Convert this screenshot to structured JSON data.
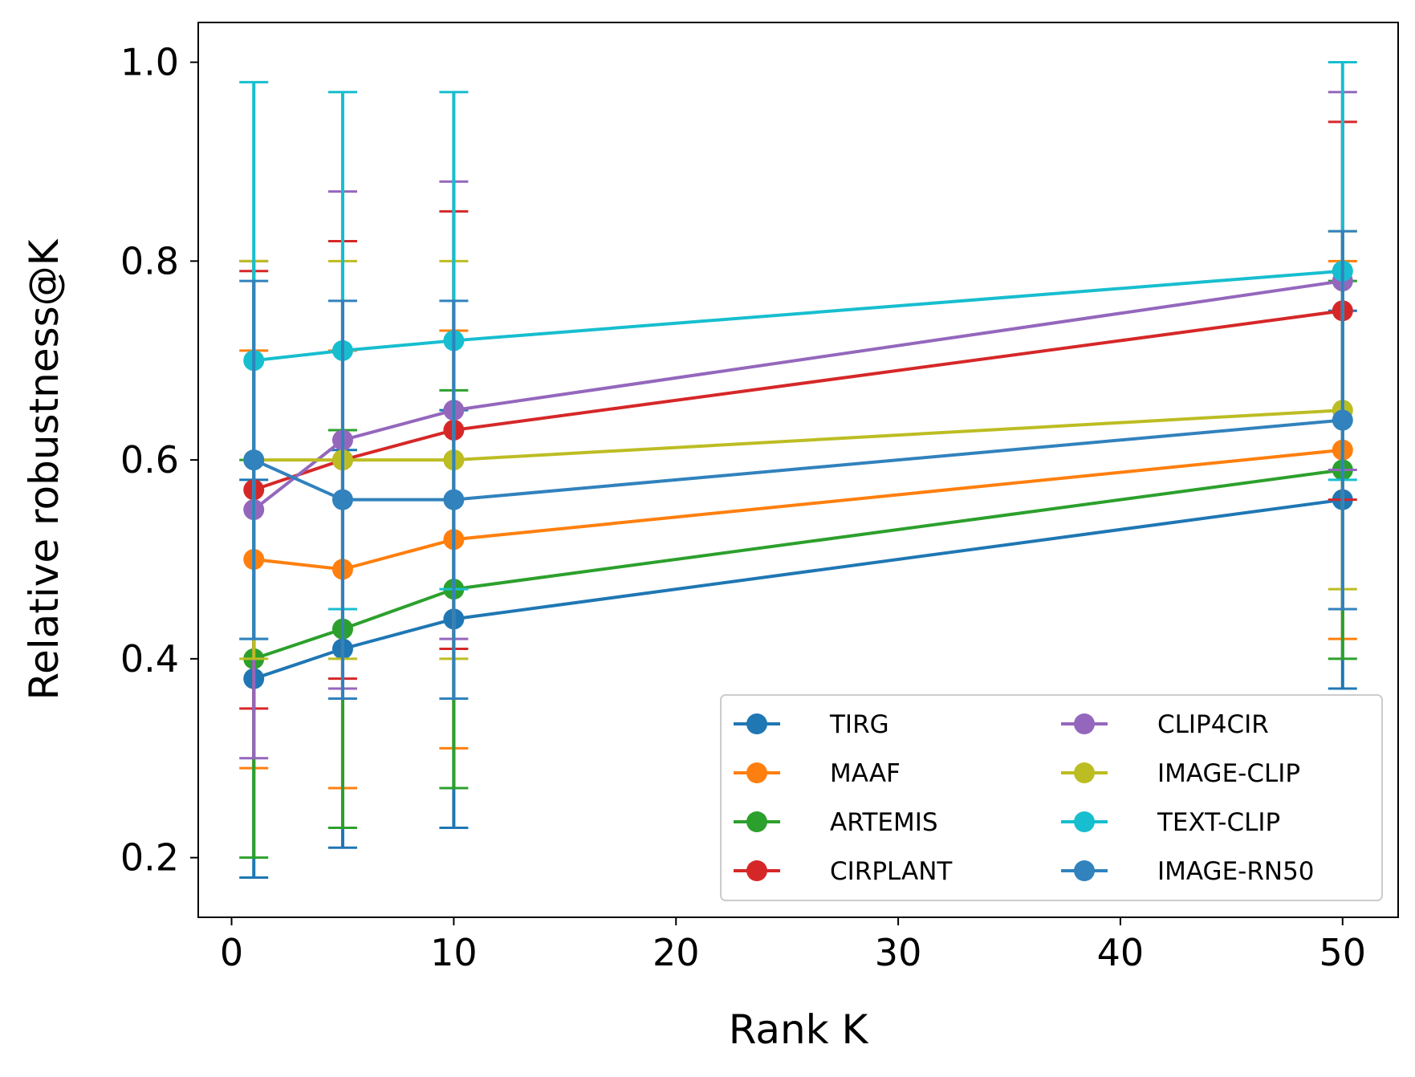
{
  "chart_data": {
    "type": "line",
    "title": "",
    "xlabel": "Rank K",
    "ylabel": "Relative robustness@K",
    "xlim": [
      -1.5,
      52.5
    ],
    "ylim": [
      0.14,
      1.04
    ],
    "xticks": [
      0,
      10,
      20,
      30,
      40,
      50
    ],
    "xtick_labels": [
      "0",
      "10",
      "20",
      "30",
      "40",
      "50"
    ],
    "yticks": [
      0.2,
      0.4,
      0.6,
      0.8,
      1.0
    ],
    "ytick_labels": [
      "0.2",
      "0.4",
      "0.6",
      "0.8",
      "1.0"
    ],
    "grid": false,
    "legend_placement": "lower-right",
    "legend_columns": 2,
    "x": [
      1,
      5,
      10,
      50
    ],
    "series": [
      {
        "name": "TIRG",
        "color": "#1f77b4",
        "values": [
          0.38,
          0.41,
          0.44,
          0.56
        ],
        "err_low": [
          0.18,
          0.21,
          0.23,
          0.37
        ],
        "err_high": [
          0.58,
          0.61,
          0.65,
          0.75
        ]
      },
      {
        "name": "MAAF",
        "color": "#ff7f0e",
        "values": [
          0.5,
          0.49,
          0.52,
          0.61
        ],
        "err_low": [
          0.29,
          0.27,
          0.31,
          0.42
        ],
        "err_high": [
          0.71,
          0.71,
          0.73,
          0.8
        ]
      },
      {
        "name": "ARTEMIS",
        "color": "#2ca02c",
        "values": [
          0.4,
          0.43,
          0.47,
          0.59
        ],
        "err_low": [
          0.2,
          0.23,
          0.27,
          0.4
        ],
        "err_high": [
          0.6,
          0.63,
          0.67,
          0.78
        ]
      },
      {
        "name": "CIRPLANT",
        "color": "#d62728",
        "values": [
          0.57,
          0.6,
          0.63,
          0.75
        ],
        "err_low": [
          0.35,
          0.38,
          0.41,
          0.56
        ],
        "err_high": [
          0.79,
          0.82,
          0.85,
          0.94
        ]
      },
      {
        "name": "CLIP4CIR",
        "color": "#9467bd",
        "values": [
          0.55,
          0.62,
          0.65,
          0.78
        ],
        "err_low": [
          0.3,
          0.37,
          0.42,
          0.59
        ],
        "err_high": [
          0.8,
          0.87,
          0.88,
          0.97
        ]
      },
      {
        "name": "IMAGE-CLIP",
        "color": "#bcbd22",
        "values": [
          0.6,
          0.6,
          0.6,
          0.65
        ],
        "err_low": [
          0.4,
          0.4,
          0.4,
          0.47
        ],
        "err_high": [
          0.8,
          0.8,
          0.8,
          0.83
        ]
      },
      {
        "name": "TEXT-CLIP",
        "color": "#17becf",
        "values": [
          0.7,
          0.71,
          0.72,
          0.79
        ],
        "err_low": [
          0.42,
          0.45,
          0.47,
          0.58
        ],
        "err_high": [
          0.98,
          0.97,
          0.97,
          1.0
        ]
      },
      {
        "name": "IMAGE-RN50",
        "color": "#3182bd",
        "values": [
          0.6,
          0.56,
          0.56,
          0.64
        ],
        "err_low": [
          0.42,
          0.36,
          0.36,
          0.45
        ],
        "err_high": [
          0.78,
          0.76,
          0.76,
          0.83
        ]
      }
    ]
  }
}
